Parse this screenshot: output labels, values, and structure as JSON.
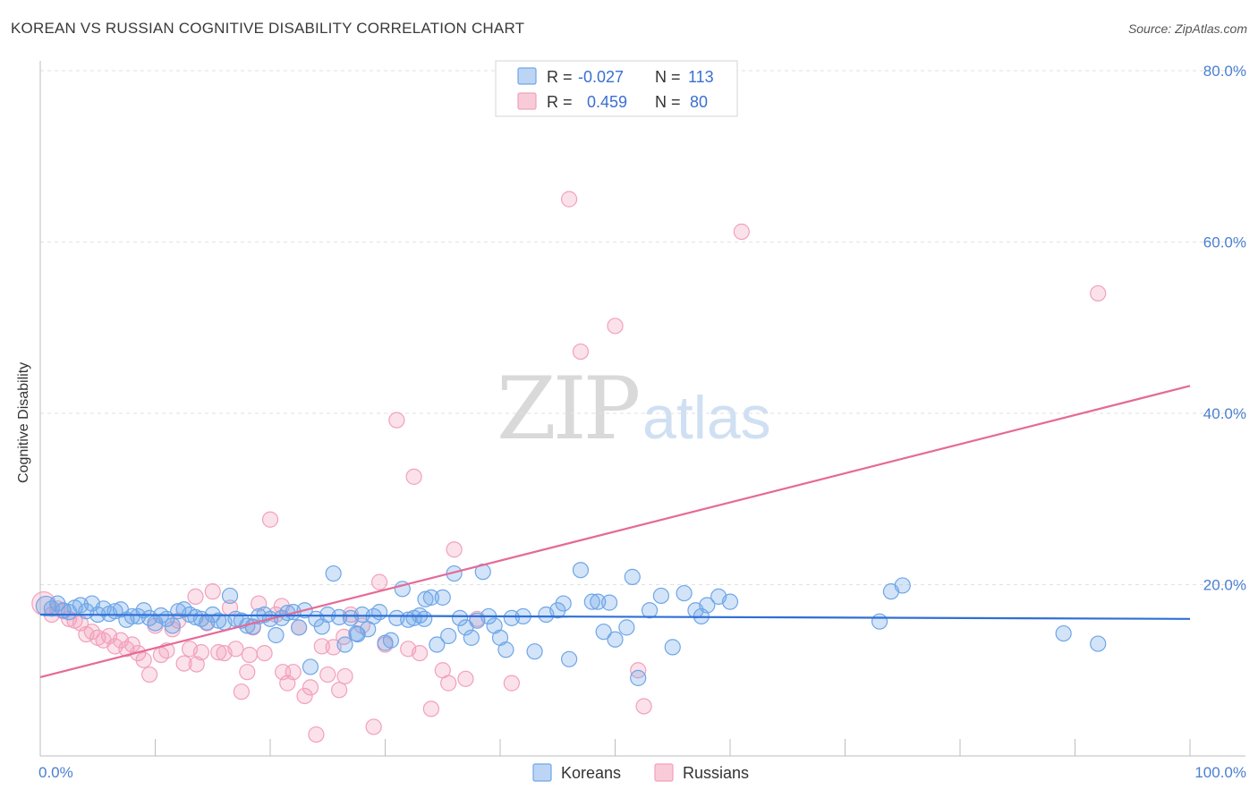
{
  "title": "KOREAN VS RUSSIAN COGNITIVE DISABILITY CORRELATION CHART",
  "source": "Source: ZipAtlas.com",
  "watermark": {
    "zip": "ZIP",
    "atlas": "atlas"
  },
  "colors": {
    "koreans": "#6ea6e8",
    "russians": "#f2a0bb",
    "koreans_line": "#2f6fd6",
    "russians_line": "#e56a96",
    "axis_text": "#4a7fd0"
  },
  "legend": {
    "r_label": "R =",
    "n_label": "N =",
    "koreans": {
      "r": "-0.027",
      "n": "113"
    },
    "russians": {
      "r": "0.459",
      "n": "80"
    }
  },
  "bottom_legend": {
    "koreans": "Koreans",
    "russians": "Russians"
  },
  "chart_data": {
    "type": "scatter",
    "title": "KOREAN VS RUSSIAN COGNITIVE DISABILITY CORRELATION CHART",
    "xlabel": "",
    "ylabel": "Cognitive Disability",
    "xlim": [
      0,
      100
    ],
    "ylim": [
      0,
      80
    ],
    "x_tick_labels": [
      "0.0%",
      "100.0%"
    ],
    "y_ticks": [
      20,
      40,
      60,
      80
    ],
    "y_tick_labels": [
      "20.0%",
      "40.0%",
      "60.0%",
      "80.0%"
    ],
    "grid": true,
    "legend_position": "top-center",
    "series": [
      {
        "name": "Koreans",
        "r": -0.027,
        "n": 113,
        "trend": {
          "x": [
            0,
            100
          ],
          "y": [
            16.5,
            16.0
          ]
        },
        "points": [
          [
            0.5,
            17.5
          ],
          [
            1,
            17.2
          ],
          [
            1.5,
            17.8
          ],
          [
            2,
            17.0
          ],
          [
            2.5,
            16.8
          ],
          [
            3,
            17.3
          ],
          [
            3.5,
            17.6
          ],
          [
            4,
            16.9
          ],
          [
            4.5,
            17.8
          ],
          [
            5,
            16.5
          ],
          [
            5.5,
            17.2
          ],
          [
            6,
            16.6
          ],
          [
            6.5,
            16.9
          ],
          [
            7,
            17.1
          ],
          [
            7.5,
            15.9
          ],
          [
            8,
            16.3
          ],
          [
            8.5,
            16.3
          ],
          [
            9,
            17.0
          ],
          [
            9.5,
            16.1
          ],
          [
            10,
            15.5
          ],
          [
            10.5,
            16.4
          ],
          [
            11,
            16.0
          ],
          [
            11.5,
            15.2
          ],
          [
            12,
            16.9
          ],
          [
            12.5,
            17.1
          ],
          [
            13,
            16.5
          ],
          [
            13.5,
            16.2
          ],
          [
            14,
            16.0
          ],
          [
            14.5,
            15.6
          ],
          [
            15,
            16.5
          ],
          [
            15.5,
            15.8
          ],
          [
            16,
            15.6
          ],
          [
            16.5,
            18.7
          ],
          [
            17,
            16.0
          ],
          [
            17.5,
            15.8
          ],
          [
            18,
            15.2
          ],
          [
            18.5,
            15.1
          ],
          [
            19,
            16.3
          ],
          [
            19.5,
            16.5
          ],
          [
            20,
            16.0
          ],
          [
            20.5,
            14.1
          ],
          [
            21,
            16.1
          ],
          [
            21.5,
            16.7
          ],
          [
            22,
            16.8
          ],
          [
            22.5,
            15.0
          ],
          [
            23,
            17.0
          ],
          [
            23.5,
            10.4
          ],
          [
            24,
            16.0
          ],
          [
            24.5,
            15.1
          ],
          [
            25,
            16.5
          ],
          [
            25.5,
            21.3
          ],
          [
            26,
            16.2
          ],
          [
            26.5,
            13.0
          ],
          [
            27,
            16.1
          ],
          [
            27.5,
            14.3
          ],
          [
            28,
            16.5
          ],
          [
            28.5,
            14.8
          ],
          [
            29,
            16.3
          ],
          [
            29.5,
            16.8
          ],
          [
            30,
            13.2
          ],
          [
            30.5,
            13.5
          ],
          [
            31,
            16.1
          ],
          [
            31.5,
            19.5
          ],
          [
            32,
            15.9
          ],
          [
            32.5,
            16.1
          ],
          [
            33,
            16.4
          ],
          [
            33.5,
            18.3
          ],
          [
            34,
            18.5
          ],
          [
            34.5,
            13.0
          ],
          [
            35,
            18.5
          ],
          [
            35.5,
            14.0
          ],
          [
            36,
            21.3
          ],
          [
            36.5,
            16.1
          ],
          [
            37,
            15.0
          ],
          [
            37.5,
            13.8
          ],
          [
            38,
            15.8
          ],
          [
            38.5,
            21.5
          ],
          [
            39,
            16.3
          ],
          [
            39.5,
            15.2
          ],
          [
            40,
            13.8
          ],
          [
            40.5,
            12.4
          ],
          [
            41,
            16.1
          ],
          [
            42,
            16.3
          ],
          [
            43,
            12.2
          ],
          [
            44,
            16.5
          ],
          [
            45,
            17.0
          ],
          [
            45.5,
            17.8
          ],
          [
            46,
            11.3
          ],
          [
            47,
            21.7
          ],
          [
            48,
            18.0
          ],
          [
            48.5,
            18.0
          ],
          [
            49,
            14.5
          ],
          [
            49.5,
            17.9
          ],
          [
            50,
            13.6
          ],
          [
            51,
            15.0
          ],
          [
            51.5,
            20.9
          ],
          [
            52,
            9.1
          ],
          [
            53,
            17.0
          ],
          [
            54,
            18.7
          ],
          [
            55,
            12.7
          ],
          [
            56,
            19.0
          ],
          [
            57,
            17.0
          ],
          [
            57.5,
            16.3
          ],
          [
            58,
            17.6
          ],
          [
            59,
            18.6
          ],
          [
            60,
            18.0
          ],
          [
            73,
            15.7
          ],
          [
            74,
            19.2
          ],
          [
            75,
            19.9
          ],
          [
            89,
            14.3
          ],
          [
            92,
            13.1
          ],
          [
            27.6,
            14.2
          ],
          [
            33.4,
            16.0
          ]
        ]
      },
      {
        "name": "Russians",
        "r": 0.459,
        "n": 80,
        "trend": {
          "x": [
            0,
            100
          ],
          "y": [
            9.2,
            43.2
          ]
        },
        "points": [
          [
            0.3,
            17.8
          ],
          [
            1,
            16.5
          ],
          [
            1.5,
            17.2
          ],
          [
            2,
            16.9
          ],
          [
            2.5,
            16.0
          ],
          [
            3,
            15.8
          ],
          [
            3.5,
            15.5
          ],
          [
            4,
            14.2
          ],
          [
            4.5,
            14.5
          ],
          [
            5,
            13.8
          ],
          [
            5.5,
            13.5
          ],
          [
            6,
            14.0
          ],
          [
            6.5,
            12.8
          ],
          [
            7,
            13.5
          ],
          [
            7.5,
            12.5
          ],
          [
            8,
            13.0
          ],
          [
            8.5,
            12.0
          ],
          [
            9,
            11.2
          ],
          [
            9.5,
            9.5
          ],
          [
            10,
            15.2
          ],
          [
            10.5,
            11.8
          ],
          [
            11,
            12.3
          ],
          [
            11.5,
            14.8
          ],
          [
            12,
            15.8
          ],
          [
            12.5,
            10.8
          ],
          [
            13,
            12.5
          ],
          [
            13.5,
            18.6
          ],
          [
            14,
            12.1
          ],
          [
            14.5,
            15.5
          ],
          [
            15,
            19.2
          ],
          [
            15.5,
            12.1
          ],
          [
            16,
            12.0
          ],
          [
            16.5,
            17.3
          ],
          [
            17,
            12.5
          ],
          [
            17.5,
            7.5
          ],
          [
            18,
            9.8
          ],
          [
            18.5,
            15.0
          ],
          [
            19,
            17.8
          ],
          [
            19.5,
            12.0
          ],
          [
            20,
            27.6
          ],
          [
            20.5,
            16.5
          ],
          [
            21,
            17.5
          ],
          [
            21.5,
            8.5
          ],
          [
            22,
            9.8
          ],
          [
            22.5,
            15.0
          ],
          [
            23,
            7.0
          ],
          [
            23.5,
            8.0
          ],
          [
            24,
            2.5
          ],
          [
            24.5,
            12.8
          ],
          [
            25,
            9.5
          ],
          [
            25.5,
            12.7
          ],
          [
            26,
            7.7
          ],
          [
            26.5,
            9.3
          ],
          [
            27,
            16.5
          ],
          [
            28,
            15.2
          ],
          [
            29,
            3.4
          ],
          [
            29.5,
            20.3
          ],
          [
            30,
            13.0
          ],
          [
            31,
            39.2
          ],
          [
            32,
            12.5
          ],
          [
            32.5,
            32.6
          ],
          [
            33,
            12.0
          ],
          [
            34,
            5.5
          ],
          [
            35,
            10.0
          ],
          [
            35.5,
            8.5
          ],
          [
            36,
            24.1
          ],
          [
            37,
            9.0
          ],
          [
            38,
            16.0
          ],
          [
            41,
            8.5
          ],
          [
            46,
            65.0
          ],
          [
            47,
            47.2
          ],
          [
            50,
            50.2
          ],
          [
            52,
            10.0
          ],
          [
            52.5,
            5.8
          ],
          [
            61,
            61.2
          ],
          [
            92,
            54.0
          ],
          [
            21.1,
            9.8
          ],
          [
            18.2,
            11.8
          ],
          [
            26.4,
            13.9
          ],
          [
            13.6,
            10.7
          ]
        ]
      }
    ]
  }
}
